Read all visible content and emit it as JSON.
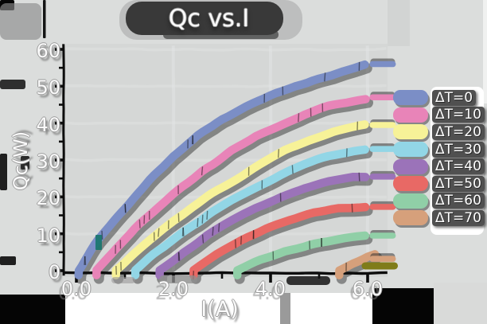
{
  "figure": {
    "title": "Qc vs.I",
    "x_axis_label": "I(A)",
    "y_axis_label": "Qc(W)"
  },
  "chart_data": {
    "type": "line",
    "title": "Qc vs.I",
    "xlabel": "I(A)",
    "ylabel": "Qc(W)",
    "xlim": [
      -0.3,
      6.6
    ],
    "ylim": [
      -2,
      62
    ],
    "grid": "faint",
    "legend_position": "right",
    "x_ticks": {
      "values": [
        0,
        2,
        4,
        6
      ],
      "labels": [
        "0.0",
        "2.0",
        "4.0",
        "6.0"
      ],
      "minor": [
        1,
        3,
        5
      ]
    },
    "y_ticks": {
      "values": [
        0,
        10,
        20,
        30,
        40,
        50,
        60
      ],
      "labels": [
        "0",
        "10",
        "20",
        "30",
        "40",
        "50",
        "60"
      ],
      "minor": [
        5,
        15,
        25,
        35,
        45,
        55
      ]
    },
    "series": [
      {
        "name": "ΔT=0",
        "color": "#7b8ec6",
        "zero_crossing_A": 0.05,
        "end_cap_value": 56,
        "points": [
          [
            0.05,
            0
          ],
          [
            0.3,
            5.5
          ],
          [
            0.6,
            11
          ],
          [
            1,
            17
          ],
          [
            1.5,
            24.5
          ],
          [
            2,
            31
          ],
          [
            2.5,
            36.5
          ],
          [
            3,
            41
          ],
          [
            3.5,
            44.5
          ],
          [
            4,
            47.5
          ],
          [
            4.5,
            50
          ],
          [
            5,
            52
          ],
          [
            5.5,
            54
          ],
          [
            5.95,
            55.5
          ]
        ]
      },
      {
        "name": "ΔT=10",
        "color": "#e884b8",
        "zero_crossing_A": 0.42,
        "end_cap_value": 47,
        "points": [
          [
            0.42,
            0
          ],
          [
            0.8,
            6
          ],
          [
            1.2,
            11.5
          ],
          [
            1.7,
            17.5
          ],
          [
            2.2,
            23
          ],
          [
            2.7,
            28
          ],
          [
            3.2,
            32.5
          ],
          [
            3.7,
            36.5
          ],
          [
            4.2,
            39.5
          ],
          [
            4.7,
            42.5
          ],
          [
            5.2,
            44.5
          ],
          [
            5.7,
            46
          ],
          [
            5.95,
            46.8
          ]
        ]
      },
      {
        "name": "ΔT=20",
        "color": "#f7f298",
        "zero_crossing_A": 0.82,
        "end_cap_value": 39.5,
        "points": [
          [
            0.82,
            0
          ],
          [
            1.3,
            6
          ],
          [
            1.8,
            11.5
          ],
          [
            2.3,
            16.5
          ],
          [
            2.8,
            21
          ],
          [
            3.3,
            25
          ],
          [
            3.8,
            29
          ],
          [
            4.3,
            32.5
          ],
          [
            4.8,
            35.3
          ],
          [
            5.3,
            37.5
          ],
          [
            5.8,
            39
          ],
          [
            5.95,
            39.4
          ]
        ]
      },
      {
        "name": "ΔT=30",
        "color": "#92d6e6",
        "zero_crossing_A": 1.22,
        "end_cap_value": 33,
        "points": [
          [
            1.22,
            0
          ],
          [
            1.7,
            5.5
          ],
          [
            2.2,
            10.5
          ],
          [
            2.7,
            15
          ],
          [
            3.2,
            19
          ],
          [
            3.7,
            22.5
          ],
          [
            4.2,
            26
          ],
          [
            4.7,
            28.8
          ],
          [
            5.2,
            31
          ],
          [
            5.7,
            32.3
          ],
          [
            5.95,
            32.7
          ]
        ]
      },
      {
        "name": "ΔT=40",
        "color": "#9b73b9",
        "zero_crossing_A": 1.72,
        "end_cap_value": 25.5,
        "points": [
          [
            1.72,
            0
          ],
          [
            2.2,
            5
          ],
          [
            2.7,
            9.5
          ],
          [
            3.2,
            13.5
          ],
          [
            3.7,
            17
          ],
          [
            4.2,
            20
          ],
          [
            4.7,
            22.3
          ],
          [
            5.2,
            24
          ],
          [
            5.7,
            25.2
          ],
          [
            5.95,
            25.5
          ]
        ]
      },
      {
        "name": "ΔT=50",
        "color": "#e86965",
        "zero_crossing_A": 2.42,
        "end_cap_value": 17.3,
        "points": [
          [
            2.42,
            0
          ],
          [
            2.9,
            4.5
          ],
          [
            3.4,
            8.2
          ],
          [
            3.9,
            11.3
          ],
          [
            4.4,
            13.8
          ],
          [
            4.9,
            15.7
          ],
          [
            5.4,
            16.8
          ],
          [
            5.95,
            17.3
          ]
        ]
      },
      {
        "name": "ΔT=60",
        "color": "#90cfa7",
        "zero_crossing_A": 3.32,
        "end_cap_value": 9.5,
        "points": [
          [
            3.32,
            0
          ],
          [
            3.8,
            3
          ],
          [
            4.3,
            5.3
          ],
          [
            4.8,
            7
          ],
          [
            5.3,
            8.3
          ],
          [
            5.8,
            9.2
          ],
          [
            5.95,
            9.4
          ]
        ]
      },
      {
        "name": "ΔT=70",
        "color": "#d6a07b",
        "zero_crossing_A": 5.42,
        "end_cap_value": 3.2,
        "points": [
          [
            5.42,
            0
          ],
          [
            5.7,
            2
          ],
          [
            6,
            3.8
          ],
          [
            6.15,
            4.4
          ]
        ]
      }
    ],
    "extra_marks": {
      "olive_end_cap": {
        "color": "#7f7c19",
        "x": [
          5.95,
          6.55
        ],
        "y": 1.3
      }
    }
  },
  "style": {
    "figure_bg": "#dbdddc",
    "plot_bg": "#d5d7d6",
    "grid_color": "#e4e6e5",
    "spine_color": "#0c0c0c",
    "line_shadow": "#141414",
    "text_color": "#fafafa",
    "text_outline": "#9a9a9a",
    "smudge_dark": "#1c1c1c",
    "smudge_gray": "#8f8f8f",
    "bottom_band_white": "#ffffff",
    "bottom_band_black": "#050505"
  }
}
